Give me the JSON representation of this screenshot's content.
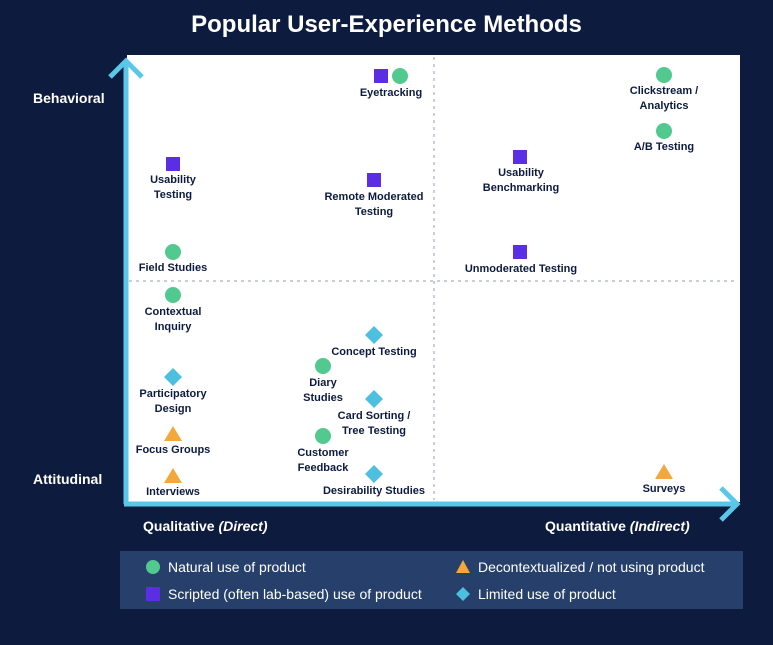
{
  "title": "Popular User-Experience Methods",
  "axes": {
    "y_top": "Behavioral",
    "y_bottom": "Attitudinal",
    "x_left_main": "Qualitative",
    "x_left_sub": "(Direct)",
    "x_right_main": "Quantitative",
    "x_right_sub": "(Indirect)"
  },
  "colors": {
    "background": "#0d1b3f",
    "natural": "#52c98e",
    "scripted": "#5b2ee6",
    "decontextualized": "#f2a83b",
    "limited": "#4ec0df",
    "axis": "#5bc7e8"
  },
  "legend": [
    {
      "symbol": "circle",
      "label": "Natural use of product"
    },
    {
      "symbol": "triangle",
      "label": "Decontextualized / not using product"
    },
    {
      "symbol": "square",
      "label": "Scripted (often lab-based) use of product"
    },
    {
      "symbol": "diamond",
      "label": "Limited use of product"
    }
  ],
  "methods": [
    {
      "label": "Eyetracking",
      "symbols": [
        "square",
        "circle"
      ]
    },
    {
      "label": "Clickstream / Analytics",
      "symbols": [
        "circle"
      ]
    },
    {
      "label": "A/B Testing",
      "symbols": [
        "circle"
      ]
    },
    {
      "label": "Usability Testing",
      "symbols": [
        "square"
      ]
    },
    {
      "label": "Remote Moderated Testing",
      "symbols": [
        "square"
      ]
    },
    {
      "label": "Usability Benchmarking",
      "symbols": [
        "square"
      ]
    },
    {
      "label": "Field Studies",
      "symbols": [
        "circle"
      ]
    },
    {
      "label": "Unmoderated Testing",
      "symbols": [
        "square"
      ]
    },
    {
      "label": "Contextual Inquiry",
      "symbols": [
        "circle"
      ]
    },
    {
      "label": "Concept Testing",
      "symbols": [
        "diamond"
      ]
    },
    {
      "label": "Participatory Design",
      "symbols": [
        "diamond"
      ]
    },
    {
      "label": "Diary Studies",
      "symbols": [
        "circle"
      ]
    },
    {
      "label": "Card Sorting / Tree Testing",
      "symbols": [
        "diamond"
      ]
    },
    {
      "label": "Focus Groups",
      "symbols": [
        "triangle"
      ]
    },
    {
      "label": "Customer Feedback",
      "symbols": [
        "circle"
      ]
    },
    {
      "label": "Interviews",
      "symbols": [
        "triangle"
      ]
    },
    {
      "label": "Desirability Studies",
      "symbols": [
        "diamond"
      ]
    },
    {
      "label": "Surveys",
      "symbols": [
        "triangle"
      ]
    }
  ]
}
